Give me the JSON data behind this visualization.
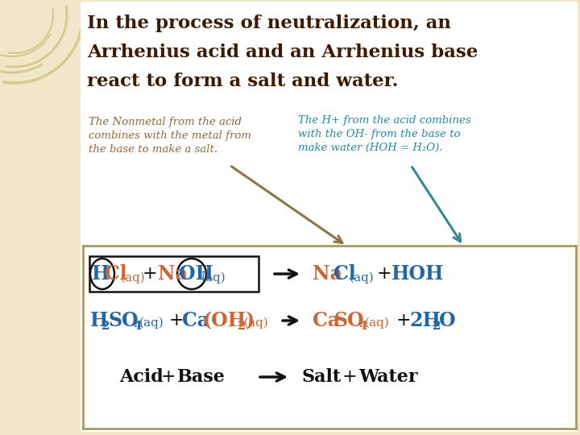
{
  "bg_color": "#f0e6c8",
  "white_area_color": "#ffffff",
  "title_line1": "In the process of neutralization, an",
  "title_line2": "Arrhenius acid and an Arrhenius base",
  "title_line3": "react to form a salt and water.",
  "title_color": "#3d1a00",
  "note_left_color": "#996633",
  "note_right_color": "#2288aa",
  "note_left_lines": [
    "The Nonmetal from the acid",
    "combines with the metal from",
    "the base to make a salt."
  ],
  "note_right_lines": [
    "The H+ from the acid combines",
    "with the OH- from the base to",
    "make water (HOH = H₂O)."
  ],
  "acid_color": "#2266aa",
  "base_color": "#cc6633",
  "black": "#111111",
  "tan_border": "#aa9966",
  "tan_arrow_color": "#887744",
  "teal_arrow_color": "#338899",
  "circle_color": "#d8c990"
}
